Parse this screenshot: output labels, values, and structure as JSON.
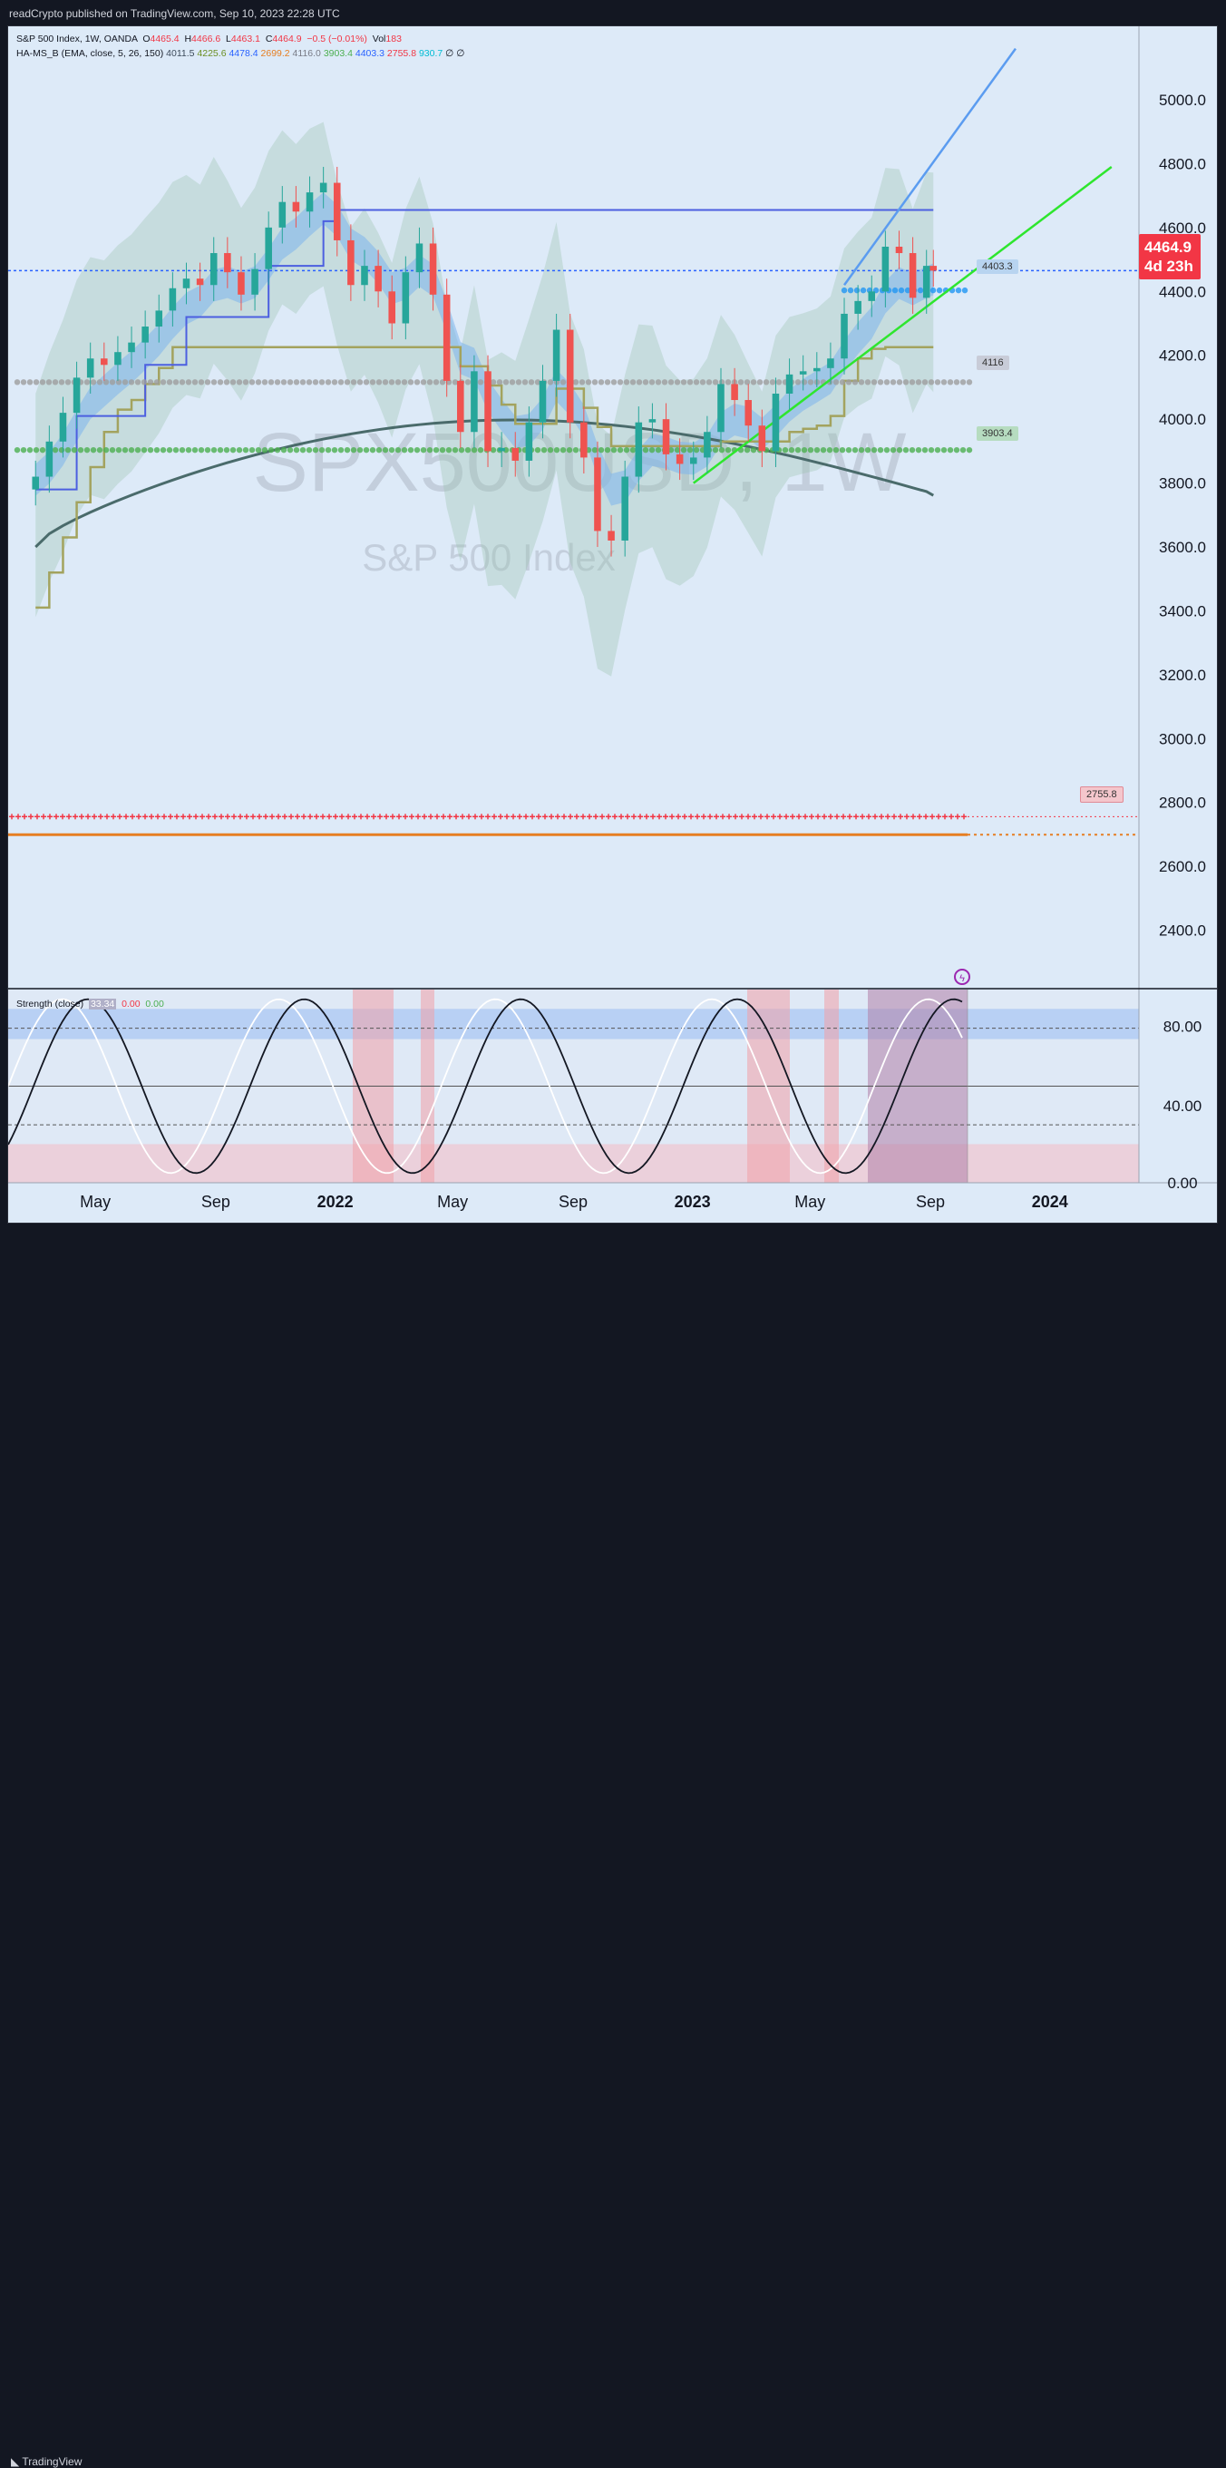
{
  "header": {
    "publisher": "readCrypto published on TradingView.com, Sep 10, 2023 22:28 UTC"
  },
  "legend": {
    "symbol": "S&P 500 Index, 1W, OANDA",
    "o_label": "O",
    "o_val": "4465.4",
    "h_label": "H",
    "h_val": "4466.6",
    "l_label": "L",
    "l_val": "4463.1",
    "c_label": "C",
    "c_val": "4464.9",
    "chg": "−0.5 (−0.01%)",
    "vol_label": "Vol",
    "vol_val": "183",
    "ind_name": "HA-MS_B (EMA, close, 5, 26, 150)",
    "ind_vals": [
      "4011.5",
      "4225.6",
      "4478.4",
      "2699.2",
      "4116.0",
      "3903.4",
      "4403.3",
      "2755.8",
      "930.7",
      "∅",
      "∅"
    ],
    "ind_colors": [
      "#3c4a5a",
      "#6b8e23",
      "#2962ff",
      "#e67e22",
      "#787b86",
      "#4caf50",
      "#2962ff",
      "#f23645",
      "#00bcd4",
      "#131722",
      "#131722"
    ]
  },
  "watermark": {
    "symbol": "SPX500USD, 1W",
    "name": "S&P 500 Index"
  },
  "price_pill": {
    "price": "4464.9",
    "countdown": "4d 23h"
  },
  "level_pills": [
    "4403.3",
    "4116",
    "3903.4",
    "2755.8"
  ],
  "strength_legend": {
    "name": "Strength (close)",
    "v1": "33.34",
    "v2": "0.00",
    "v3": "0.00"
  },
  "x_axis": [
    "May",
    "Sep",
    "2022",
    "May",
    "Sep",
    "2023",
    "May",
    "Sep",
    "2024"
  ],
  "footer": {
    "brand": "TradingView"
  },
  "colors": {
    "background": "#ddeaf8",
    "up": "#26a69a",
    "down": "#ef5350",
    "blue_line": "#5b9cf0",
    "green_line": "#2ee62e",
    "ema150": "#4a6b6b",
    "olive": "#a3a35e",
    "price_tag": "#f23645"
  },
  "chart_data": {
    "type": "line",
    "title": "S&P 500 Index",
    "timeframe": "1W",
    "yaxis_ticks": [
      5000.0,
      4800.0,
      4600.0,
      4400.0,
      4200.0,
      4000.0,
      3800.0,
      3600.0,
      3400.0,
      3200.0,
      3000.0,
      2800.0,
      2600.0,
      2400.0
    ],
    "yaxis_labels": [
      "5000.0",
      "4800.0",
      "4600.0",
      "4400.0",
      "4200.0",
      "4000.0",
      "3800.0",
      "3600.0",
      "3400.0",
      "3200.0",
      "3000.0",
      "2800.0",
      "2600.0",
      "2400.0"
    ],
    "ylim": [
      2220,
      5230
    ],
    "xaxis_labels": [
      "May",
      "Sep",
      "2022",
      "May",
      "Sep",
      "2023",
      "May",
      "Sep",
      "2024"
    ],
    "series": [
      {
        "type": "candlestick",
        "x": [
          "2021-03-01",
          "2021-03-15",
          "2021-03-29",
          "2021-04-12",
          "2021-04-26",
          "2021-05-10",
          "2021-05-24",
          "2021-06-07",
          "2021-06-21",
          "2021-07-05",
          "2021-07-19",
          "2021-08-02",
          "2021-08-16",
          "2021-08-30",
          "2021-09-13",
          "2021-09-27",
          "2021-10-11",
          "2021-10-25",
          "2021-11-08",
          "2021-11-22",
          "2021-12-06",
          "2021-12-20",
          "2022-01-03",
          "2022-01-17",
          "2022-01-31",
          "2022-02-14",
          "2022-02-28",
          "2022-03-14",
          "2022-03-28",
          "2022-04-11",
          "2022-04-25",
          "2022-05-09",
          "2022-05-23",
          "2022-06-06",
          "2022-06-20",
          "2022-07-04",
          "2022-07-18",
          "2022-08-01",
          "2022-08-15",
          "2022-08-29",
          "2022-09-12",
          "2022-09-26",
          "2022-10-10",
          "2022-10-24",
          "2022-11-07",
          "2022-11-21",
          "2022-12-05",
          "2022-12-19",
          "2023-01-02",
          "2023-01-16",
          "2023-01-30",
          "2023-02-13",
          "2023-02-27",
          "2023-03-13",
          "2023-03-27",
          "2023-04-10",
          "2023-04-24",
          "2023-05-08",
          "2023-05-22",
          "2023-06-05",
          "2023-06-19",
          "2023-07-03",
          "2023-07-17",
          "2023-07-31",
          "2023-08-14",
          "2023-08-28",
          "2023-09-04"
        ],
        "close": [
          3820,
          3930,
          4020,
          4130,
          4190,
          4170,
          4210,
          4240,
          4290,
          4340,
          4410,
          4440,
          4420,
          4520,
          4460,
          4390,
          4470,
          4600,
          4680,
          4650,
          4710,
          4740,
          4560,
          4420,
          4480,
          4400,
          4300,
          4460,
          4550,
          4390,
          4120,
          3960,
          4150,
          3900,
          3910,
          3870,
          3990,
          4120,
          4280,
          3990,
          3880,
          3650,
          3620,
          3820,
          3990,
          4000,
          3890,
          3860,
          3880,
          3960,
          4110,
          4060,
          3980,
          3900,
          4080,
          4140,
          4150,
          4160,
          4190,
          4330,
          4370,
          4400,
          4540,
          4520,
          4380,
          4480,
          4464.9
        ]
      },
      {
        "name": "",
        "type": "line",
        "values_start": 3600,
        "values_end": 4011.5
      },
      {
        "name": "",
        "type": "step",
        "value_current": 4225.6
      },
      {
        "name": "",
        "type": "step",
        "value_current": 4478.4
      },
      {
        "name": "",
        "type": "trendline",
        "from": [
          "2023-06-05",
          4420
        ],
        "to": [
          "2023-11-27",
          5160
        ]
      },
      {
        "name": "",
        "type": "trendline",
        "from": [
          "2023-01-02",
          3800
        ],
        "to": [
          "2024-03-04",
          4790
        ]
      }
    ],
    "levels": [
      {
        "value": 4403.3,
        "style": "dots",
        "color": "#2196f3"
      },
      {
        "value": 4116,
        "style": "dots",
        "color": "#9e9e9e"
      },
      {
        "value": 3903.4,
        "style": "dots",
        "color": "#4caf50"
      },
      {
        "value": 2755.8,
        "style": "crosses",
        "color": "#f23645"
      },
      {
        "value": 2699.2,
        "style": "dashed",
        "color": "#e67e22"
      },
      {
        "value": 4464.9,
        "style": "dotted",
        "color": "#2962ff"
      }
    ],
    "oscillator": {
      "name": "Strength (close)",
      "ylim": [
        0,
        100
      ],
      "yaxis_labels": [
        "80.00",
        "40.00",
        "0.00"
      ],
      "last_value": 33.34
    }
  }
}
